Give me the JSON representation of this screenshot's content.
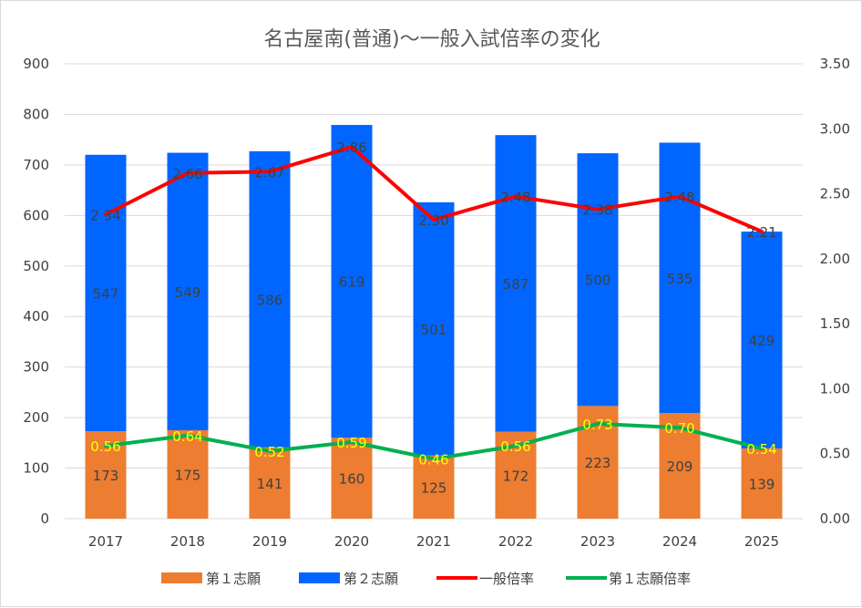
{
  "chart_data": {
    "type": "bar",
    "title": "名古屋南(普通)～一般入試倍率の変化",
    "categories": [
      "2017",
      "2018",
      "2019",
      "2020",
      "2021",
      "2022",
      "2023",
      "2024",
      "2025"
    ],
    "ylim": [
      0,
      900
    ],
    "y_ticks": [
      "0",
      "100",
      "200",
      "300",
      "400",
      "500",
      "600",
      "700",
      "800",
      "900"
    ],
    "y2lim": [
      0,
      3.5
    ],
    "y2_ticks": [
      "0.00",
      "0.50",
      "1.00",
      "1.50",
      "2.00",
      "2.50",
      "3.00",
      "3.50"
    ],
    "grid": true,
    "legend_position": "bottom",
    "series": [
      {
        "name": "第１志願",
        "type": "bar",
        "stacked": true,
        "axis": "left",
        "color": "#ed7d31",
        "values": [
          173,
          175,
          141,
          160,
          125,
          172,
          223,
          209,
          139
        ]
      },
      {
        "name": "第２志願",
        "type": "bar",
        "stacked": true,
        "axis": "left",
        "color": "#0066ff",
        "values": [
          547,
          549,
          586,
          619,
          501,
          587,
          500,
          535,
          429
        ]
      },
      {
        "name": "一般倍率",
        "type": "line",
        "axis": "right",
        "color": "#ff0000",
        "values": [
          2.34,
          2.66,
          2.67,
          2.86,
          2.3,
          2.48,
          2.38,
          2.48,
          2.21
        ],
        "labels": [
          "2.34",
          "2.66",
          "2.67",
          "2.86",
          "2.30",
          "2.48",
          "2.38",
          "2.48",
          "2.21"
        ]
      },
      {
        "name": "第１志願倍率",
        "type": "line",
        "axis": "right",
        "color": "#00b050",
        "values": [
          0.56,
          0.64,
          0.52,
          0.59,
          0.46,
          0.56,
          0.73,
          0.7,
          0.54
        ],
        "labels": [
          "0.56",
          "0.64",
          "0.52",
          "0.59",
          "0.46",
          "0.56",
          "0.73",
          "0.70",
          "0.54"
        ]
      }
    ]
  }
}
